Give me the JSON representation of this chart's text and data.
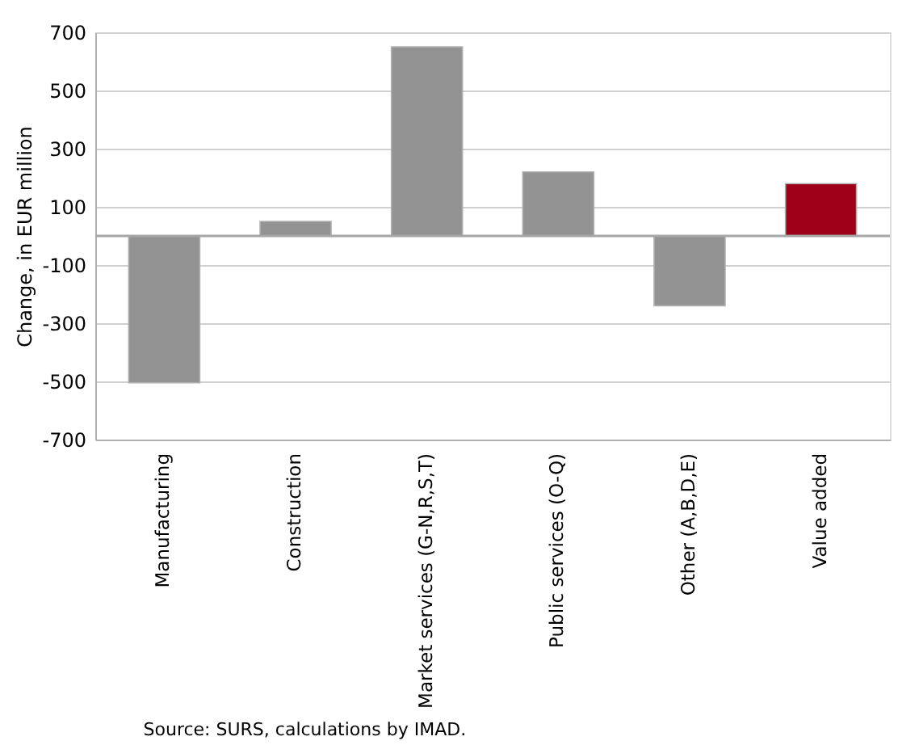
{
  "chart_data": {
    "type": "bar",
    "categories": [
      "Manufacturing",
      "Construction",
      "Market services (G-N,R,S,T)",
      "Public services (O-Q)",
      "Other (A,B,D,E)",
      "Value added"
    ],
    "values": [
      -505,
      50,
      650,
      220,
      -240,
      180
    ],
    "colors": [
      "#939393",
      "#939393",
      "#939393",
      "#939393",
      "#939393",
      "#9e001a"
    ],
    "ylabel": "Change, in EUR million",
    "ylim": [
      -700,
      700
    ],
    "yticks": [
      -700,
      -500,
      -300,
      -100,
      100,
      300,
      500,
      700
    ],
    "grid": "y",
    "ref_lines": [
      {
        "axis": "y",
        "value": 0,
        "label": null,
        "color": "#a6a6a6"
      }
    ],
    "annotations": [
      "Source: SURS, calculations by IMAD."
    ]
  }
}
